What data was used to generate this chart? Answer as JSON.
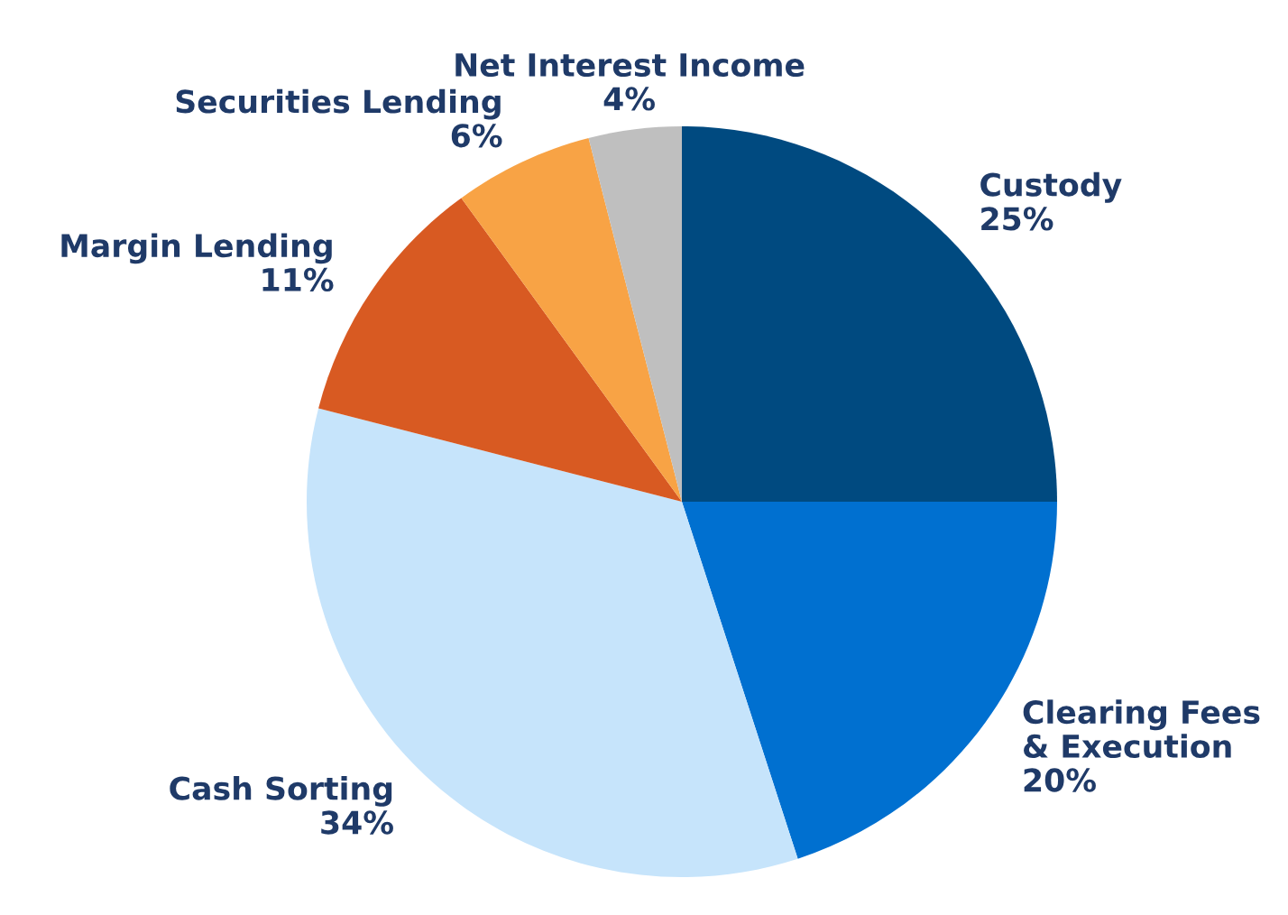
{
  "chart_data": {
    "type": "pie",
    "categories": [
      "Custody",
      "Clearing Fees\n& Execution",
      "Cash Sorting",
      "Margin Lending",
      "Securities Lending",
      "Net Interest Income"
    ],
    "values": [
      25,
      20,
      34,
      11,
      6,
      4
    ],
    "value_labels": [
      "25%",
      "20%",
      "34%",
      "11%",
      "6%",
      "4%"
    ],
    "colors": [
      "#004a80",
      "#0070d0",
      "#c6e4fb",
      "#d85a22",
      "#f8a345",
      "#bfbfbf"
    ],
    "legend": false
  }
}
